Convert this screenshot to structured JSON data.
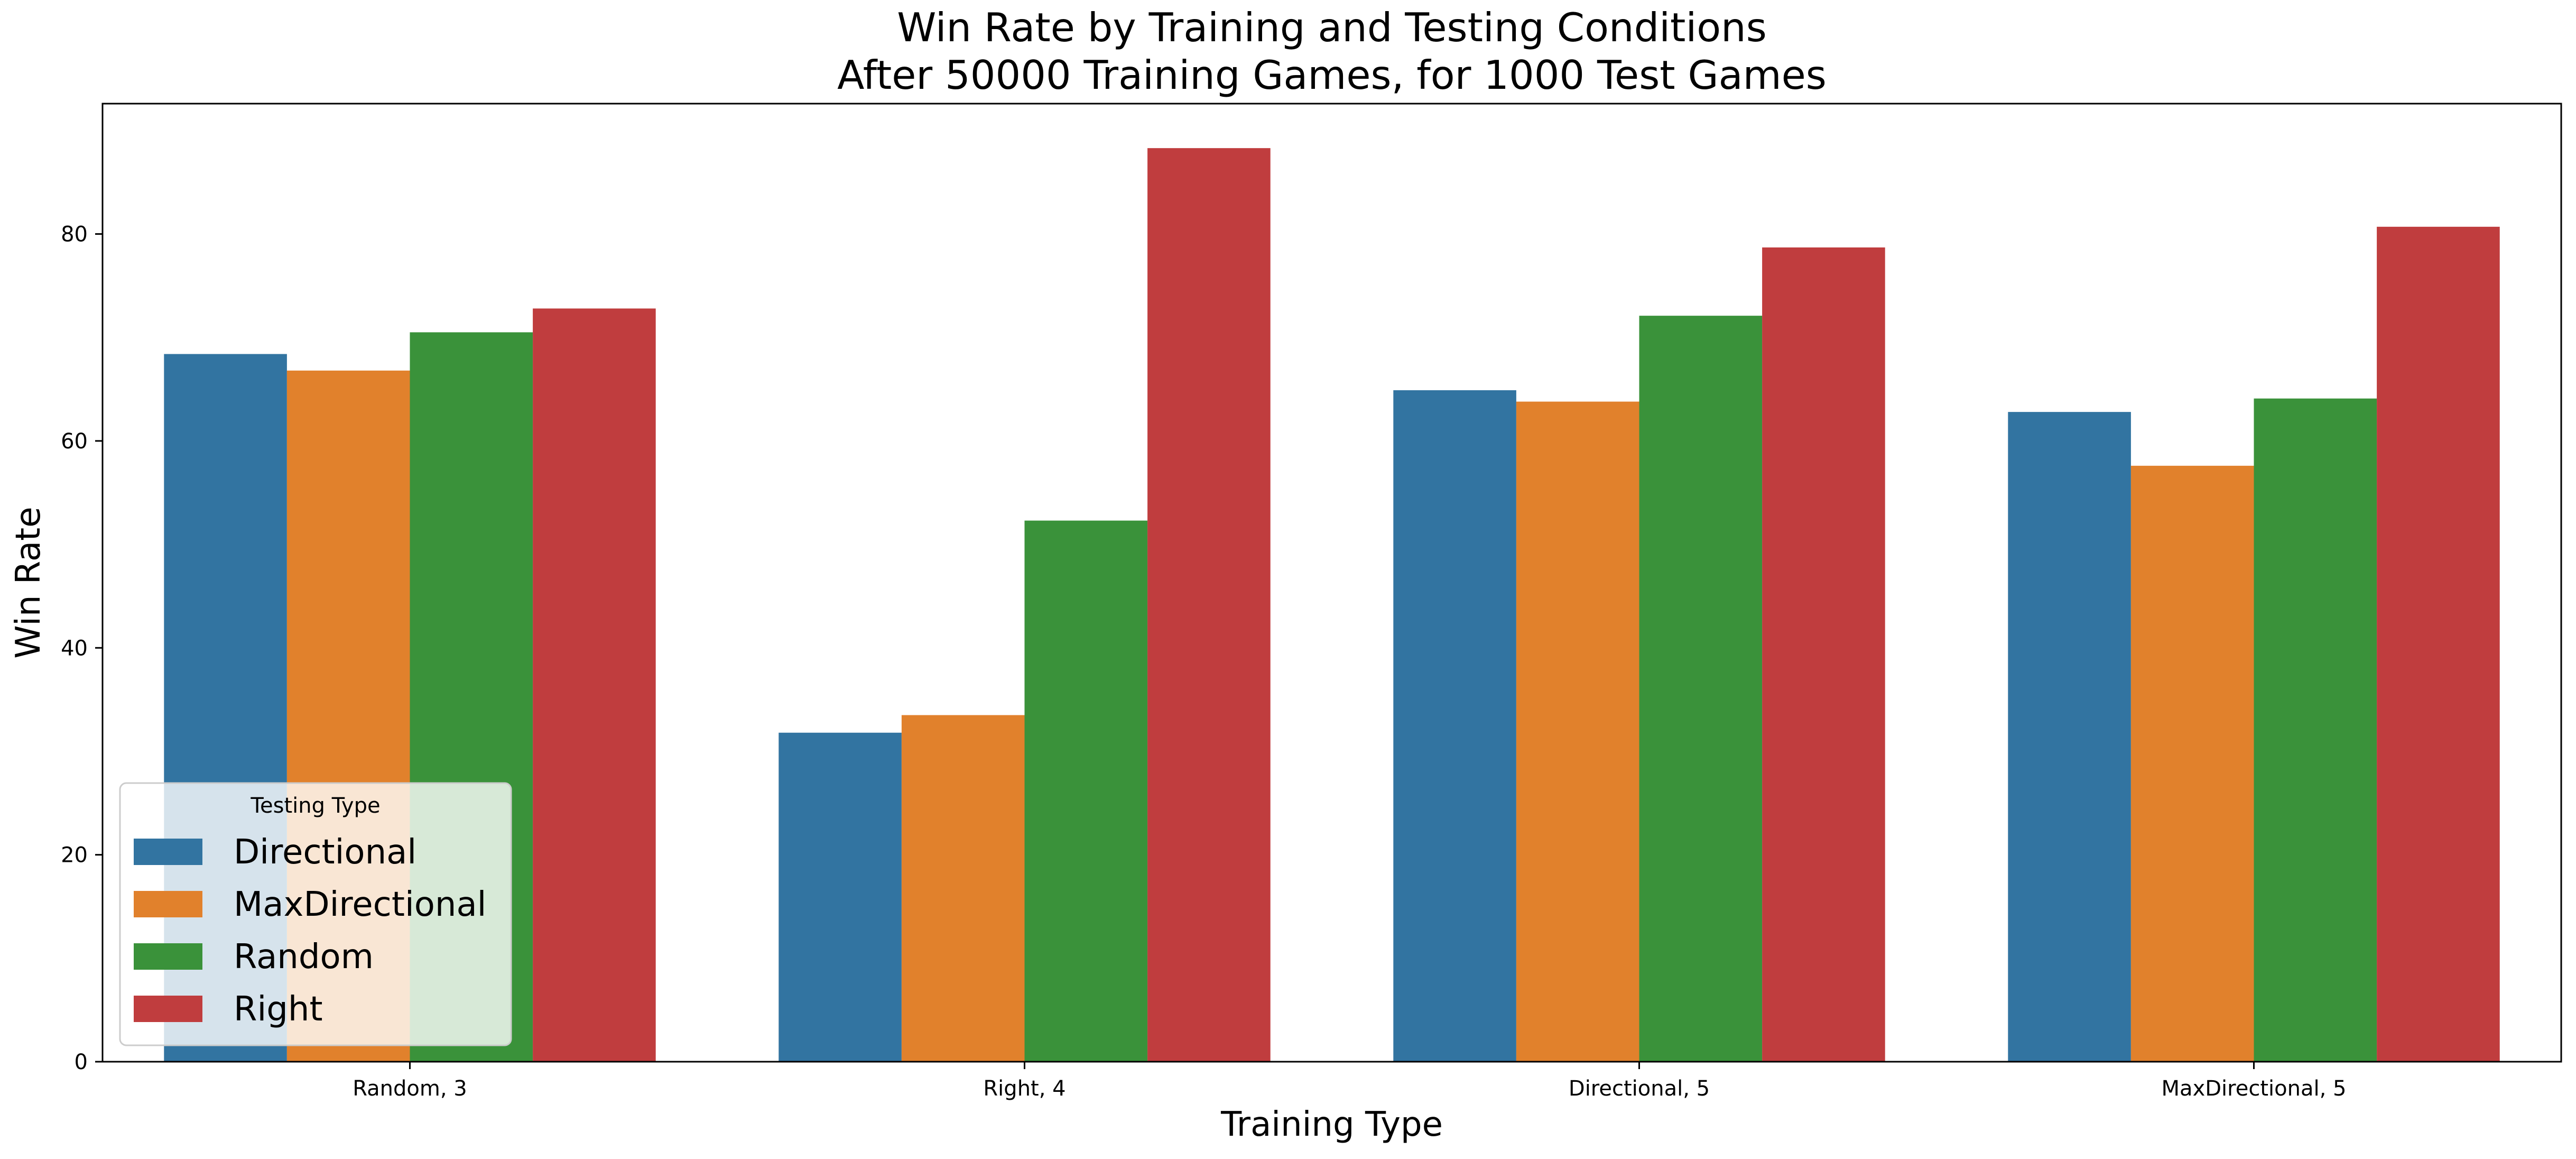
{
  "chart_data": {
    "type": "bar",
    "title": "Win Rate by Training and Testing Conditions",
    "subtitle": "After 50000 Training Games, for 1000 Test Games",
    "xlabel": "Training Type",
    "ylabel": "Win Rate",
    "categories": [
      "Random, 3",
      "Right, 4",
      "Directional, 5",
      "MaxDirectional, 5"
    ],
    "series": [
      {
        "name": "Directional",
        "color": "#3274a1",
        "values": [
          68.4,
          31.8,
          64.9,
          62.8
        ]
      },
      {
        "name": "MaxDirectional",
        "color": "#e1812c",
        "values": [
          66.8,
          33.5,
          63.8,
          57.6
        ]
      },
      {
        "name": "Random",
        "color": "#3a923a",
        "values": [
          70.5,
          52.3,
          72.1,
          64.1
        ]
      },
      {
        "name": "Right",
        "color": "#c03d3e",
        "values": [
          72.8,
          88.3,
          78.7,
          80.7
        ]
      }
    ],
    "ylim": [
      0,
      92.6
    ],
    "yticks": [
      0,
      20,
      40,
      60,
      80
    ],
    "grid": false,
    "legend": {
      "title": "Testing Type",
      "placement": "lower-left"
    }
  }
}
